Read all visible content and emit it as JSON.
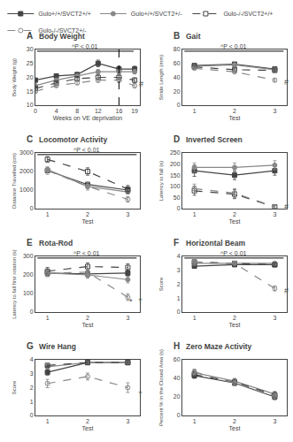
{
  "chart_data": [
    {
      "type": "line",
      "label": "A",
      "title": "Body Weight",
      "xlabel": "Weeks on VE deprivation",
      "ylabel": "Body Weight (g)",
      "xlim": [
        0,
        20
      ],
      "ylim": [
        10,
        30
      ],
      "xticks": [
        0,
        4,
        8,
        12,
        16,
        19
      ],
      "yticks": [
        10,
        15,
        20,
        25,
        30
      ],
      "grid": false,
      "legend": "top",
      "bracket": {
        "text": "^P < 0.01",
        "x": [
          0.3,
          18.8
        ],
        "y": 29.4
      },
      "vlines": [
        16
      ],
      "annotations": [
        {
          "text": "#",
          "x": 19.5,
          "y": 17.5
        }
      ],
      "series": [
        {
          "name": "Gulo+/+/SVCT2+/+",
          "color": "#444444",
          "line_style": "solid",
          "marker": "square",
          "x": [
            0,
            4,
            8,
            12,
            16,
            19
          ],
          "values": [
            19,
            20.5,
            21,
            25,
            23,
            23
          ],
          "yerr": [
            0.5,
            0.5,
            0.7,
            1.2,
            1.0,
            1.0
          ]
        },
        {
          "name": "Gulo+/+/SVCT2+/-",
          "color": "#888888",
          "line_style": "solid",
          "marker": "circle",
          "x": [
            0,
            4,
            8,
            12,
            16,
            19
          ],
          "values": [
            17,
            19,
            20.5,
            22,
            22,
            22
          ],
          "yerr": [
            0.5,
            0.5,
            0.5,
            0.8,
            0.8,
            0.8
          ]
        },
        {
          "name": "Gulo-/-/SVCT2+/+",
          "color": "#444444",
          "line_style": "dashed",
          "marker": "square-open",
          "x": [
            0,
            4,
            8,
            12,
            16,
            19
          ],
          "values": [
            16,
            18,
            19.5,
            20,
            20,
            19
          ],
          "yerr": [
            0.5,
            0.5,
            0.5,
            0.8,
            0.8,
            0.8
          ]
        },
        {
          "name": "Gulo-/-/SVCT2+/-",
          "color": "#888888",
          "line_style": "dashed",
          "marker": "circle-open",
          "x": [
            0,
            4,
            8,
            12,
            16,
            19
          ],
          "values": [
            15,
            17,
            18,
            19,
            19,
            17
          ],
          "yerr": [
            0.5,
            0.5,
            0.5,
            0.8,
            0.8,
            0.8
          ]
        }
      ]
    },
    {
      "type": "line",
      "label": "B",
      "title": "Gait",
      "xlabel": "Test",
      "ylabel": "Stride Length (mm)",
      "xlim": [
        0.7,
        3.3
      ],
      "ylim": [
        0,
        80
      ],
      "xticks": [
        1,
        2,
        3
      ],
      "yticks": [
        0,
        20,
        40,
        60,
        80
      ],
      "grid": false,
      "bracket": {
        "text": "^P < 0.01",
        "x": [
          0.75,
          3.22
        ],
        "y": 77.6
      },
      "annotations": [
        {
          "text": "#",
          "x": 3.18,
          "y": 33
        }
      ],
      "series": [
        {
          "color": "#444444",
          "line_style": "solid",
          "marker": "square",
          "x": [
            1,
            2,
            3
          ],
          "values": [
            57,
            59,
            52
          ],
          "yerr": [
            1.5,
            1.5,
            2.0
          ]
        },
        {
          "color": "#888888",
          "line_style": "solid",
          "marker": "circle",
          "x": [
            1,
            2,
            3
          ],
          "values": [
            56,
            58,
            51
          ],
          "yerr": [
            1.5,
            1.5,
            2.0
          ]
        },
        {
          "color": "#444444",
          "line_style": "dashed",
          "marker": "square-open",
          "x": [
            1,
            2,
            3
          ],
          "values": [
            55,
            51,
            50
          ],
          "yerr": [
            1.5,
            1.5,
            2.0
          ]
        },
        {
          "color": "#888888",
          "line_style": "dashed",
          "marker": "circle-open",
          "x": [
            1,
            2,
            3
          ],
          "values": [
            53,
            48,
            36
          ],
          "yerr": [
            1.5,
            2.0,
            2.5
          ]
        }
      ]
    },
    {
      "type": "line",
      "label": "C",
      "title": "Locomotor Activity",
      "xlabel": "Test",
      "ylabel": "Distance Travelled (cm)",
      "xlim": [
        0.7,
        3.3
      ],
      "ylim": [
        0,
        3000
      ],
      "xticks": [
        1,
        2,
        3
      ],
      "yticks": [
        0,
        1000,
        2000,
        3000
      ],
      "grid": false,
      "bracket": {
        "text": "^P < 0.01",
        "x": [
          0.75,
          3.22
        ],
        "y": 2910
      },
      "series": [
        {
          "color": "#444444",
          "line_style": "solid",
          "marker": "square",
          "x": [
            1,
            2,
            3
          ],
          "values": [
            2050,
            1300,
            1000
          ],
          "yerr": [
            120,
            120,
            120
          ]
        },
        {
          "color": "#888888",
          "line_style": "solid",
          "marker": "circle",
          "x": [
            1,
            2,
            3
          ],
          "values": [
            2100,
            1200,
            900
          ],
          "yerr": [
            120,
            120,
            120
          ]
        },
        {
          "color": "#444444",
          "line_style": "dashed",
          "marker": "square-open",
          "x": [
            1,
            2,
            3
          ],
          "values": [
            2650,
            2000,
            1050
          ],
          "yerr": [
            150,
            200,
            200
          ]
        },
        {
          "color": "#888888",
          "line_style": "dashed",
          "marker": "circle-open",
          "x": [
            1,
            2,
            3
          ],
          "values": [
            2050,
            1200,
            500
          ],
          "yerr": [
            200,
            200,
            150
          ]
        }
      ]
    },
    {
      "type": "line",
      "label": "D",
      "title": "Inverted Screen",
      "xlabel": "Test",
      "ylabel": "Latency to fall (s)",
      "xlim": [
        0.7,
        3.3
      ],
      "ylim": [
        0,
        250
      ],
      "xticks": [
        1,
        2,
        3
      ],
      "yticks": [
        0,
        50,
        100,
        150,
        200,
        250
      ],
      "grid": false,
      "annotations": [
        {
          "text": "#",
          "x": 3.18,
          "y": 8
        }
      ],
      "series": [
        {
          "color": "#444444",
          "line_style": "solid",
          "marker": "square",
          "x": [
            1,
            2,
            3
          ],
          "values": [
            170,
            150,
            170
          ],
          "yerr": [
            25,
            20,
            20
          ]
        },
        {
          "color": "#888888",
          "line_style": "solid",
          "marker": "circle",
          "x": [
            1,
            2,
            3
          ],
          "values": [
            185,
            185,
            195
          ],
          "yerr": [
            20,
            20,
            20
          ]
        },
        {
          "color": "#444444",
          "line_style": "dashed",
          "marker": "square-open",
          "x": [
            1,
            2,
            3
          ],
          "values": [
            80,
            65,
            8
          ],
          "yerr": [
            20,
            20,
            6
          ]
        },
        {
          "color": "#888888",
          "line_style": "dashed",
          "marker": "circle-open",
          "x": [
            1,
            2,
            3
          ],
          "values": [
            90,
            70,
            8
          ],
          "yerr": [
            20,
            20,
            6
          ]
        }
      ]
    },
    {
      "type": "line",
      "label": "E",
      "title": "Rota-Rod",
      "xlabel": "Test",
      "ylabel": "Latency to fall first rotation (s)",
      "xlim": [
        0.7,
        3.3
      ],
      "ylim": [
        0,
        300
      ],
      "xticks": [
        1,
        2,
        3
      ],
      "yticks": [
        0,
        100,
        200,
        300
      ],
      "grid": false,
      "bracket": {
        "text": "^P < 0.01",
        "x": [
          0.75,
          3.22
        ],
        "y": 291
      },
      "annotations": [
        {
          "text": "*",
          "x": 3.08,
          "y": 55
        },
        {
          "text": "†",
          "x": 3.22,
          "y": 55
        }
      ],
      "series": [
        {
          "color": "#444444",
          "line_style": "solid",
          "marker": "square",
          "x": [
            1,
            2,
            3
          ],
          "values": [
            210,
            205,
            210
          ],
          "yerr": [
            18,
            18,
            18
          ]
        },
        {
          "color": "#888888",
          "line_style": "solid",
          "marker": "circle",
          "x": [
            1,
            2,
            3
          ],
          "values": [
            210,
            200,
            175
          ],
          "yerr": [
            18,
            18,
            18
          ]
        },
        {
          "color": "#444444",
          "line_style": "dashed",
          "marker": "square-open",
          "x": [
            1,
            2,
            3
          ],
          "values": [
            220,
            245,
            240
          ],
          "yerr": [
            20,
            20,
            20
          ]
        },
        {
          "color": "#888888",
          "line_style": "dashed",
          "marker": "circle-open",
          "x": [
            1,
            2,
            3
          ],
          "values": [
            210,
            215,
            80
          ],
          "yerr": [
            18,
            18,
            18
          ]
        }
      ]
    },
    {
      "type": "line",
      "label": "F",
      "title": "Horizontal Beam",
      "xlabel": "Test",
      "ylabel": "Score",
      "xlim": [
        0.7,
        3.3
      ],
      "ylim": [
        0,
        4
      ],
      "xticks": [
        1,
        2,
        3
      ],
      "yticks": [
        0,
        1,
        2,
        3,
        4
      ],
      "grid": false,
      "bracket": {
        "text": "^P < 0.01",
        "x": [
          0.75,
          3.22
        ],
        "y": 3.88
      },
      "annotations": [
        {
          "text": "#",
          "x": 3.18,
          "y": 1.55
        }
      ],
      "series": [
        {
          "color": "#444444",
          "line_style": "solid",
          "marker": "square",
          "x": [
            1,
            2,
            3
          ],
          "values": [
            3.3,
            3.4,
            3.4
          ],
          "yerr": [
            0.12,
            0.1,
            0.1
          ]
        },
        {
          "color": "#888888",
          "line_style": "solid",
          "marker": "circle",
          "x": [
            1,
            2,
            3
          ],
          "values": [
            3.5,
            3.5,
            3.5
          ],
          "yerr": [
            0.1,
            0.1,
            0.1
          ]
        },
        {
          "color": "#444444",
          "line_style": "dashed",
          "marker": "square-open",
          "x": [
            1,
            2,
            3
          ],
          "values": [
            3.6,
            3.5,
            3.4
          ],
          "yerr": [
            0.08,
            0.08,
            0.1
          ]
        },
        {
          "color": "#888888",
          "line_style": "dashed",
          "marker": "circle-open",
          "x": [
            1,
            2,
            3
          ],
          "values": [
            3.6,
            3.5,
            1.7
          ],
          "yerr": [
            0.08,
            0.08,
            0.18
          ]
        }
      ]
    },
    {
      "type": "line",
      "label": "G",
      "title": "Wire Hang",
      "xlabel": "Test",
      "ylabel": "Score",
      "xlim": [
        0.7,
        3.3
      ],
      "ylim": [
        0,
        4
      ],
      "xticks": [
        1,
        2,
        3
      ],
      "yticks": [
        0,
        1,
        2,
        3,
        4
      ],
      "grid": false,
      "annotations": [
        {
          "text": "†",
          "x": 3.22,
          "y": 1.5
        }
      ],
      "series": [
        {
          "color": "#444444",
          "line_style": "solid",
          "marker": "square",
          "x": [
            1,
            2,
            3
          ],
          "values": [
            3.1,
            3.8,
            3.8
          ],
          "yerr": [
            0.2,
            0.08,
            0.08
          ]
        },
        {
          "color": "#888888",
          "line_style": "solid",
          "marker": "circle",
          "x": [
            1,
            2,
            3
          ],
          "values": [
            3.5,
            3.8,
            3.8
          ],
          "yerr": [
            0.12,
            0.08,
            0.08
          ]
        },
        {
          "color": "#444444",
          "line_style": "dashed",
          "marker": "square-open",
          "x": [
            1,
            2,
            3
          ],
          "values": [
            3.6,
            3.8,
            3.8
          ],
          "yerr": [
            0.08,
            0.06,
            0.06
          ]
        },
        {
          "color": "#888888",
          "line_style": "dashed",
          "marker": "circle-open",
          "x": [
            1,
            2,
            3
          ],
          "values": [
            2.3,
            2.8,
            2.0
          ],
          "yerr": [
            0.3,
            0.25,
            0.35
          ]
        }
      ]
    },
    {
      "type": "line",
      "label": "H",
      "title": "Zero Maze Activity",
      "xlabel": "Test",
      "ylabel": "Percent % in the Closed Area (s)",
      "xlim": [
        0.7,
        3.3
      ],
      "ylim": [
        0,
        60
      ],
      "xticks": [
        1,
        2,
        3
      ],
      "yticks": [
        0,
        20,
        40,
        60
      ],
      "grid": false,
      "series": [
        {
          "color": "#444444",
          "line_style": "solid",
          "marker": "square",
          "x": [
            1,
            2,
            3
          ],
          "values": [
            43,
            35,
            20
          ],
          "yerr": [
            3,
            3,
            3
          ]
        },
        {
          "color": "#888888",
          "line_style": "solid",
          "marker": "circle",
          "x": [
            1,
            2,
            3
          ],
          "values": [
            46,
            37,
            23
          ],
          "yerr": [
            3,
            3,
            3
          ]
        },
        {
          "color": "#444444",
          "line_style": "dashed",
          "marker": "square-open",
          "x": [
            1,
            2,
            3
          ],
          "values": [
            44,
            36,
            22
          ],
          "yerr": [
            3,
            3,
            3
          ]
        },
        {
          "color": "#888888",
          "line_style": "dashed",
          "marker": "circle-open",
          "x": [
            1,
            2,
            3
          ],
          "values": [
            47,
            35,
            21
          ],
          "yerr": [
            3,
            3,
            3
          ]
        }
      ]
    }
  ]
}
